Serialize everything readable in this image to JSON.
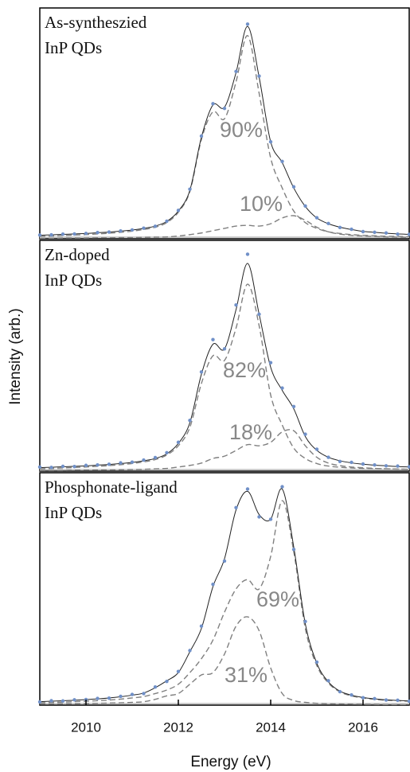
{
  "chart_data": [
    {
      "type": "line",
      "panel_label": [
        "As-syntheszied",
        "InP QDs"
      ],
      "annotations": [
        "90%",
        "10%"
      ],
      "xlim": [
        2009,
        2017
      ],
      "ylim": [
        0,
        100
      ],
      "x": [
        2009,
        2009.25,
        2009.5,
        2009.75,
        2010,
        2010.25,
        2010.5,
        2010.75,
        2011,
        2011.25,
        2011.5,
        2011.75,
        2012,
        2012.25,
        2012.5,
        2012.75,
        2013,
        2013.25,
        2013.5,
        2013.75,
        2014,
        2014.25,
        2014.5,
        2014.75,
        2015,
        2015.25,
        2015.5,
        2015.75,
        2016,
        2016.25,
        2016.5,
        2016.75,
        2017
      ],
      "series": [
        {
          "style": "dots",
          "color": "#7090c8",
          "values": [
            1.6,
            1.7,
            2.0,
            2.1,
            2.3,
            2.7,
            2.9,
            3.4,
            3.8,
            4.6,
            5.4,
            7.6,
            12.3,
            21.5,
            44.5,
            58.5,
            56.5,
            72.5,
            93,
            70.5,
            42,
            33.5,
            22.5,
            14.2,
            9.1,
            6.6,
            4.9,
            4.1,
            3.1,
            2.8,
            2.5,
            2.0,
            1.9
          ]
        },
        {
          "style": "line",
          "color": "#222222",
          "values": [
            1.5,
            1.7,
            1.9,
            2.1,
            2.3,
            2.6,
            2.9,
            3.3,
            3.8,
            4.5,
            5.5,
            7.5,
            12,
            21,
            44,
            58,
            57,
            72,
            92,
            70,
            42,
            33,
            22,
            14,
            9,
            6.5,
            5,
            4,
            3.2,
            2.8,
            2.4,
            2.1,
            1.9
          ]
        },
        {
          "style": "dashed",
          "color": "#808080",
          "values": [
            1,
            1.2,
            1.4,
            1.6,
            1.8,
            2.1,
            2.4,
            2.8,
            3.3,
            4,
            5,
            7,
            11.5,
            20.5,
            43,
            55,
            52,
            68,
            88,
            63,
            35,
            22,
            12,
            7,
            4.5,
            3,
            2.3,
            1.8,
            1.5,
            1.3,
            1.1,
            1,
            0.9
          ]
        },
        {
          "style": "dashed",
          "color": "#808080",
          "values": [
            0.2,
            0.2,
            0.3,
            0.3,
            0.3,
            0.4,
            0.4,
            0.5,
            0.5,
            0.6,
            0.7,
            0.8,
            1.2,
            1.8,
            2.5,
            3.5,
            4.5,
            5.5,
            5.8,
            5.5,
            6.5,
            9,
            10,
            8,
            5,
            3,
            2,
            1.5,
            1.2,
            1,
            0.8,
            0.7,
            0.6
          ]
        }
      ]
    },
    {
      "type": "line",
      "panel_label": [
        "Zn-doped",
        "InP QDs"
      ],
      "annotations": [
        "82%",
        "18%"
      ],
      "ylabel": "Intensity (arb.)",
      "xlim": [
        2009,
        2017
      ],
      "ylim": [
        0,
        100
      ],
      "x": [
        2009,
        2009.25,
        2009.5,
        2009.75,
        2010,
        2010.25,
        2010.5,
        2010.75,
        2011,
        2011.25,
        2011.5,
        2011.75,
        2012,
        2012.25,
        2012.5,
        2012.75,
        2013,
        2013.25,
        2013.5,
        2013.75,
        2014,
        2014.25,
        2014.5,
        2014.75,
        2015,
        2015.25,
        2015.5,
        2015.75,
        2016,
        2016.25,
        2016.5,
        2016.75,
        2017
      ],
      "series": [
        {
          "style": "dots",
          "color": "#7090c8",
          "values": [
            1.8,
            1.6,
            2.1,
            2.0,
            2.5,
            2.7,
            3.0,
            3.6,
            3.9,
            4.8,
            5.9,
            8,
            12.5,
            22,
            43,
            57,
            53,
            72,
            94,
            68,
            47,
            36,
            28,
            16,
            9.5,
            6,
            4.2,
            3.8,
            3.1,
            2.7,
            2.3,
            2.2,
            1.9
          ]
        },
        {
          "style": "line",
          "color": "#222222",
          "values": [
            1.5,
            1.7,
            1.9,
            2.1,
            2.3,
            2.6,
            2.9,
            3.3,
            3.8,
            4.5,
            5.5,
            7.5,
            12,
            21,
            42,
            55,
            53,
            70,
            90,
            68,
            45,
            35,
            27,
            15,
            9,
            6,
            4.5,
            3.6,
            3,
            2.6,
            2.3,
            2.0,
            1.8
          ]
        },
        {
          "style": "dashed",
          "color": "#808080",
          "values": [
            1,
            1.2,
            1.4,
            1.6,
            1.8,
            2.1,
            2.4,
            2.8,
            3.3,
            4,
            5,
            7,
            11,
            19,
            38,
            50,
            48,
            62,
            81,
            63,
            33,
            20,
            10,
            5.5,
            3.3,
            2.2,
            1.7,
            1.4,
            1.2,
            1.1,
            1,
            0.9,
            0.8
          ]
        },
        {
          "style": "dashed",
          "color": "#808080",
          "values": [
            0.3,
            0.3,
            0.3,
            0.4,
            0.4,
            0.5,
            0.5,
            0.6,
            0.7,
            0.8,
            1,
            1.2,
            1.8,
            2.5,
            3.5,
            5.5,
            6.5,
            9,
            11.5,
            11,
            12.5,
            17,
            17.5,
            11,
            6,
            3.5,
            2.4,
            1.8,
            1.5,
            1.2,
            1,
            0.9,
            0.8
          ]
        }
      ]
    },
    {
      "type": "line",
      "panel_label": [
        "Phosphonate-ligand",
        "InP QDs"
      ],
      "annotations": [
        "69%",
        "31%"
      ],
      "xlabel": "Energy (eV)",
      "xlim": [
        2009,
        2017
      ],
      "ylim": [
        0,
        100
      ],
      "xticks": [
        2010,
        2012,
        2014,
        2016
      ],
      "x": [
        2009,
        2009.25,
        2009.5,
        2009.75,
        2010,
        2010.25,
        2010.5,
        2010.75,
        2011,
        2011.25,
        2011.5,
        2011.75,
        2012,
        2012.25,
        2012.5,
        2012.75,
        2013,
        2013.25,
        2013.5,
        2013.75,
        2014,
        2014.25,
        2014.5,
        2014.75,
        2015,
        2015.25,
        2015.5,
        2015.75,
        2016,
        2016.25,
        2016.5,
        2016.75,
        2017
      ],
      "series": [
        {
          "style": "dots",
          "color": "#7090c8",
          "values": [
            1.4,
            1.9,
            1.8,
            2.3,
            2.4,
            2.9,
            3.0,
            3.8,
            4.6,
            5.0,
            7.8,
            10.2,
            14.5,
            23.5,
            34,
            52,
            62,
            85,
            93,
            81,
            80,
            94,
            67,
            36,
            18.5,
            10.5,
            5.8,
            4.4,
            3.2,
            2.8,
            2.2,
            2.1,
            1.7
          ]
        },
        {
          "style": "line",
          "color": "#222222",
          "values": [
            1.5,
            1.7,
            1.9,
            2.1,
            2.4,
            2.7,
            3.1,
            3.6,
            4.3,
            5.2,
            7.5,
            10.5,
            14,
            23,
            33,
            51,
            63,
            84,
            92,
            82,
            80,
            93,
            68,
            35,
            18,
            10,
            6,
            4.3,
            3.3,
            2.7,
            2.3,
            2.0,
            1.8
          ]
        },
        {
          "style": "dashed",
          "color": "#808080",
          "values": [
            1,
            1.2,
            1.3,
            1.5,
            1.7,
            1.9,
            2.2,
            2.6,
            3.1,
            3.7,
            5,
            6.5,
            9,
            14,
            20,
            28,
            40,
            50,
            54,
            50,
            64,
            88,
            66,
            33,
            17,
            9.5,
            5.7,
            4,
            3.1,
            2.5,
            2.1,
            1.9,
            1.7
          ]
        },
        {
          "style": "dashed",
          "color": "#808080",
          "values": [
            0.5,
            0.5,
            0.6,
            0.6,
            0.7,
            0.8,
            0.9,
            1.0,
            1.2,
            1.5,
            2.5,
            4,
            5,
            9,
            13,
            14,
            22,
            34,
            38,
            32,
            16,
            5,
            2,
            1.2,
            0.8,
            0.6,
            0.5,
            0.4,
            0.3,
            0.3,
            0.2,
            0.2,
            0.1
          ]
        }
      ]
    }
  ]
}
